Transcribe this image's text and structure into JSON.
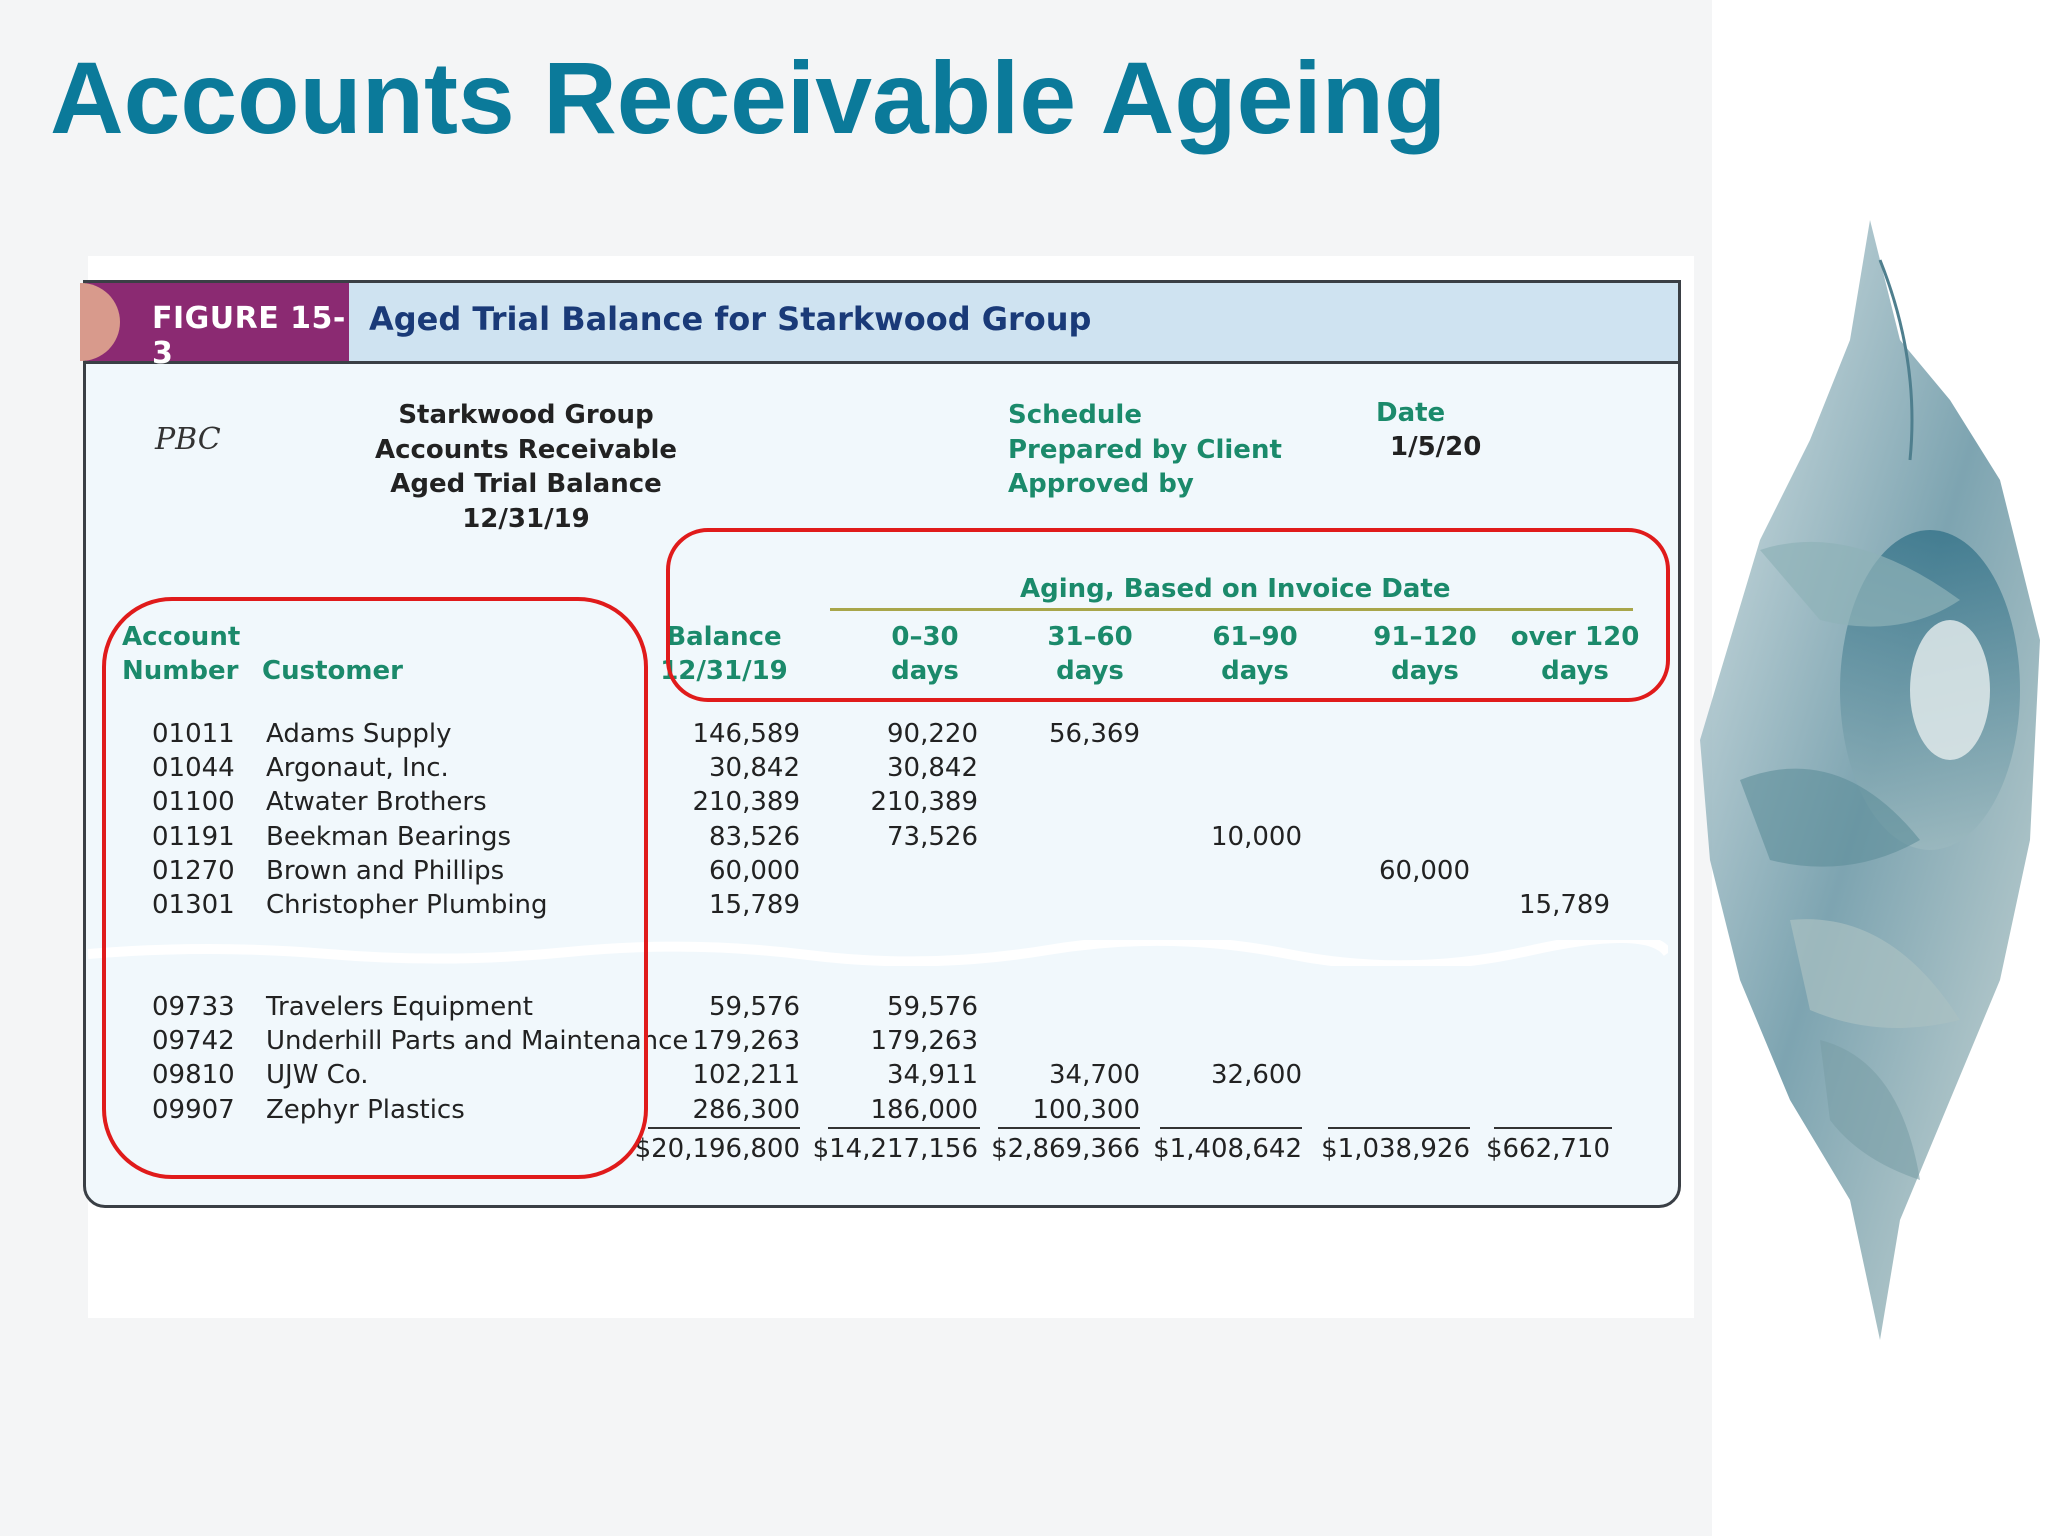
{
  "slide": {
    "title": "Accounts Receivable Ageing"
  },
  "figure": {
    "label": "FIGURE 15-3",
    "title": "Aged Trial Balance for Starkwood Group",
    "pbc_mark": "PBC",
    "company_block": [
      "Starkwood Group",
      "Accounts Receivable",
      "Aged Trial Balance",
      "12/31/19"
    ],
    "schedule_block": [
      "Schedule",
      "Prepared by Client",
      "Approved by"
    ],
    "date_label": "Date",
    "date_value": "1/5/20",
    "aging_header": "Aging, Based on Invoice Date",
    "columns": {
      "account": [
        "Account",
        "Number"
      ],
      "customer": "Customer",
      "balance": [
        "Balance",
        "12/31/19"
      ],
      "d0_30": [
        "0–30",
        "days"
      ],
      "d31_60": [
        "31–60",
        "days"
      ],
      "d61_90": [
        "61–90",
        "days"
      ],
      "d91_120": [
        "91–120",
        "days"
      ],
      "over120": [
        "over 120",
        "days"
      ]
    },
    "rows_top": [
      {
        "account": "01011",
        "customer": "Adams Supply",
        "balance": "146,589",
        "d0_30": "90,220",
        "d31_60": "56,369",
        "d61_90": "",
        "d91_120": "",
        "over120": ""
      },
      {
        "account": "01044",
        "customer": "Argonaut, Inc.",
        "balance": "30,842",
        "d0_30": "30,842",
        "d31_60": "",
        "d61_90": "",
        "d91_120": "",
        "over120": ""
      },
      {
        "account": "01100",
        "customer": "Atwater Brothers",
        "balance": "210,389",
        "d0_30": "210,389",
        "d31_60": "",
        "d61_90": "",
        "d91_120": "",
        "over120": ""
      },
      {
        "account": "01191",
        "customer": "Beekman Bearings",
        "balance": "83,526",
        "d0_30": "73,526",
        "d31_60": "",
        "d61_90": "10,000",
        "d91_120": "",
        "over120": ""
      },
      {
        "account": "01270",
        "customer": "Brown and Phillips",
        "balance": "60,000",
        "d0_30": "",
        "d31_60": "",
        "d61_90": "",
        "d91_120": "60,000",
        "over120": ""
      },
      {
        "account": "01301",
        "customer": "Christopher Plumbing",
        "balance": "15,789",
        "d0_30": "",
        "d31_60": "",
        "d61_90": "",
        "d91_120": "",
        "over120": "15,789"
      }
    ],
    "rows_bottom": [
      {
        "account": "09733",
        "customer": "Travelers Equipment",
        "balance": "59,576",
        "d0_30": "59,576",
        "d31_60": "",
        "d61_90": "",
        "d91_120": "",
        "over120": ""
      },
      {
        "account": "09742",
        "customer": "Underhill Parts and Maintenance",
        "balance": "179,263",
        "d0_30": "179,263",
        "d31_60": "",
        "d61_90": "",
        "d91_120": "",
        "over120": ""
      },
      {
        "account": "09810",
        "customer": "UJW Co.",
        "balance": "102,211",
        "d0_30": "34,911",
        "d31_60": "34,700",
        "d61_90": "32,600",
        "d91_120": "",
        "over120": ""
      },
      {
        "account": "09907",
        "customer": "Zephyr Plastics",
        "balance": "286,300",
        "d0_30": "186,000",
        "d31_60": "100,300",
        "d61_90": "",
        "d91_120": "",
        "over120": ""
      }
    ],
    "totals": {
      "balance": "$20,196,800",
      "d0_30": "$14,217,156",
      "d31_60": "$2,869,366",
      "d61_90": "$1,408,642",
      "d91_120": "$1,038,926",
      "over120": "$662,710"
    }
  },
  "colors": {
    "title": "#0b7a9a",
    "figure_label_tab": "#8b2a72",
    "figure_header_bg": "#cfe3f1",
    "column_header_text": "#1b8a6b",
    "highlight_box": "#e01b1b"
  }
}
